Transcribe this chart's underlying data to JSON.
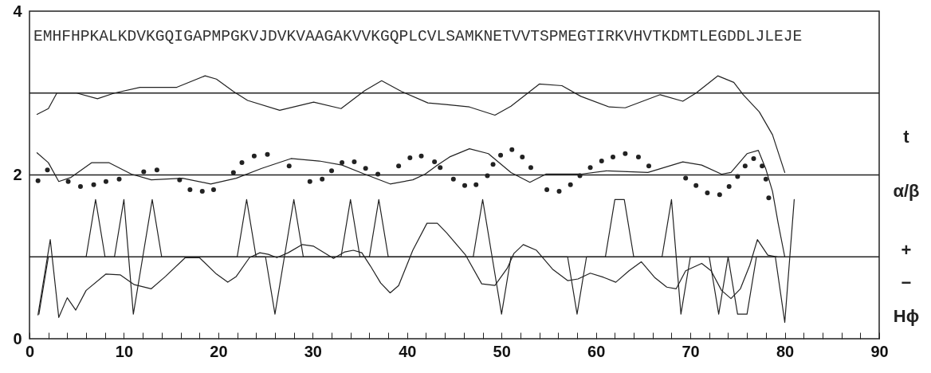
{
  "chart_data": {
    "type": "line",
    "annotations": [
      "EMHFHPKALKDVKGQIGAPMPGKVJDVKVAAGAKVVKGQPLCVLSAMKNETVVTSPMEGTIRKVHVTKDMTLEGDDLJLEJE",
      "t",
      "α/β",
      "+",
      "−",
      "Hϕ"
    ],
    "xlim": [
      0,
      90
    ],
    "ylim": [
      0,
      4
    ],
    "xticks": [
      0,
      {
        "value": 2,
        "label": null
      },
      {
        "value": 4,
        "label": null
      },
      {
        "value": 6,
        "label": null
      },
      {
        "value": 8,
        "label": null
      },
      10,
      {
        "value": 12,
        "label": null
      },
      {
        "value": 14,
        "label": null
      },
      {
        "value": 16,
        "label": null
      },
      {
        "value": 18,
        "label": null
      },
      20,
      {
        "value": 22,
        "label": null
      },
      {
        "value": 24,
        "label": null
      },
      {
        "value": 26,
        "label": null
      },
      {
        "value": 28,
        "label": null
      },
      30,
      {
        "value": 32,
        "label": null
      },
      {
        "value": 34,
        "label": null
      },
      {
        "value": 36,
        "label": null
      },
      {
        "value": 38,
        "label": null
      },
      40,
      {
        "value": 42,
        "label": null
      },
      {
        "value": 44,
        "label": null
      },
      {
        "value": 46,
        "label": null
      },
      {
        "value": 48,
        "label": null
      },
      50,
      {
        "value": 52,
        "label": null
      },
      {
        "value": 54,
        "label": null
      },
      {
        "value": 56,
        "label": null
      },
      {
        "value": 58,
        "label": null
      },
      60,
      {
        "value": 62,
        "label": null
      },
      {
        "value": 64,
        "label": null
      },
      {
        "value": 66,
        "label": null
      },
      {
        "value": 68,
        "label": null
      },
      70,
      {
        "value": 72,
        "label": null
      },
      {
        "value": 74,
        "label": null
      },
      {
        "value": 76,
        "label": null
      },
      {
        "value": 78,
        "label": null
      },
      80,
      {
        "value": 82,
        "label": null
      },
      {
        "value": 84,
        "label": null
      },
      {
        "value": 86,
        "label": null
      },
      {
        "value": 88,
        "label": null
      },
      90
    ],
    "yticks": [
      0,
      2,
      4
    ],
    "ref_lines": [
      {
        "axis": "y",
        "value": 3,
        "color": "#222222"
      },
      {
        "axis": "y",
        "value": 2,
        "color": "#222222"
      },
      {
        "axis": "y",
        "value": 1,
        "color": "#222222"
      }
    ],
    "series": [
      {
        "color": "#222222",
        "x": [
          0.8,
          2.0,
          2.9,
          5.0,
          7.2,
          9.0,
          11.7,
          15.6,
          18.6,
          19.8,
          21.6,
          23.1,
          26.5,
          30.1,
          33.0,
          35.5,
          37.3,
          39.4,
          42.2,
          44.1,
          46.6,
          49.3,
          51.0,
          54.0,
          56.4,
          58.4,
          61.4,
          63.1,
          66.8,
          69.2,
          70.6,
          72.9,
          74.6,
          75.6,
          77.3,
          78.7,
          80.0
        ],
        "values": [
          2.74,
          2.81,
          3.0,
          3.0,
          2.93,
          3.0,
          3.07,
          3.07,
          3.21,
          3.17,
          3.02,
          2.91,
          2.79,
          2.89,
          2.81,
          3.03,
          3.15,
          3.02,
          2.88,
          2.86,
          2.83,
          2.73,
          2.84,
          3.11,
          3.09,
          2.96,
          2.83,
          2.82,
          2.98,
          2.9,
          3.0,
          3.21,
          3.13,
          2.98,
          2.77,
          2.49,
          2.03
        ]
      },
      {
        "color": "#222222",
        "x": [
          0.8,
          2.0,
          3.1,
          4.4,
          6.6,
          8.4,
          10.8,
          12.9,
          16.2,
          19.2,
          21.9,
          24.6,
          27.7,
          30.7,
          33.1,
          35.5,
          38.2,
          40.6,
          41.9,
          43.2,
          44.5,
          46.6,
          48.6,
          51.0,
          53.0,
          54.7,
          58.4,
          61.1,
          65.5,
          69.2,
          71.2,
          73.3,
          74.3,
          76.0,
          77.2,
          78.0,
          78.7,
          79.3,
          80.0
        ],
        "values": [
          2.27,
          2.15,
          1.92,
          1.97,
          2.15,
          2.15,
          2.01,
          1.94,
          1.96,
          1.89,
          1.96,
          2.08,
          2.2,
          2.17,
          2.12,
          2.01,
          1.89,
          1.94,
          2.01,
          2.12,
          2.22,
          2.32,
          2.26,
          2.03,
          1.91,
          2.01,
          2.01,
          2.05,
          2.03,
          2.16,
          2.12,
          2.01,
          2.03,
          2.26,
          2.3,
          2.07,
          1.8,
          1.41,
          1.0
        ]
      },
      {
        "type": "scatter",
        "marker": "circle",
        "color": "#222222",
        "x": [
          0.9,
          1.9,
          4.1,
          5.4,
          6.8,
          8.1,
          9.5,
          12.1,
          13.5,
          15.9,
          17.0,
          18.3,
          19.5,
          21.6,
          22.5,
          23.8,
          25.2,
          27.5,
          29.7,
          31.0,
          32.0,
          33.1,
          34.4,
          35.6,
          36.9,
          39.1,
          40.3,
          41.5,
          42.9,
          43.5,
          44.9,
          46.1,
          47.3,
          48.5,
          49.1,
          49.9,
          51.1,
          52.2,
          53.1,
          54.8,
          56.1,
          57.3,
          58.3,
          59.4,
          60.6,
          61.8,
          63.1,
          64.5,
          65.6,
          69.5,
          70.6,
          71.8,
          73.1,
          74.1,
          75.0,
          75.8,
          76.7,
          77.6,
          78.0,
          78.3
        ],
        "values": [
          1.93,
          2.06,
          1.92,
          1.86,
          1.88,
          1.92,
          1.95,
          2.04,
          2.06,
          1.94,
          1.82,
          1.8,
          1.82,
          2.03,
          2.15,
          2.23,
          2.25,
          2.11,
          1.92,
          1.95,
          2.05,
          2.15,
          2.16,
          2.08,
          2.01,
          2.11,
          2.21,
          2.23,
          2.16,
          2.09,
          1.95,
          1.87,
          1.88,
          1.99,
          2.13,
          2.24,
          2.31,
          2.22,
          2.09,
          1.82,
          1.8,
          1.88,
          1.99,
          2.09,
          2.17,
          2.22,
          2.26,
          2.22,
          2.11,
          1.96,
          1.87,
          1.78,
          1.76,
          1.86,
          1.98,
          2.11,
          2.2,
          2.11,
          1.95,
          1.72
        ]
      },
      {
        "color": "#222222",
        "x": [
          1,
          2,
          6,
          7,
          8,
          9,
          10,
          11,
          12,
          13,
          14,
          22,
          23,
          24,
          25,
          26,
          27,
          28,
          29,
          33,
          34,
          35,
          36,
          37,
          38,
          47,
          48,
          49,
          50,
          51,
          57,
          58,
          59,
          61,
          62,
          63,
          64,
          67,
          68,
          69,
          70,
          72,
          73,
          74,
          75,
          76,
          77,
          79,
          80,
          81
        ],
        "values": [
          0.3,
          1,
          1,
          1.7,
          1,
          1,
          1.7,
          0.3,
          1,
          1.7,
          1,
          1,
          1.7,
          1,
          1,
          0.3,
          1,
          1.7,
          1,
          1,
          1.7,
          1,
          1,
          1.7,
          1,
          1,
          1.7,
          1,
          0.3,
          1,
          1,
          0.3,
          1,
          1,
          1.7,
          1.7,
          1,
          1,
          1.7,
          0.3,
          1,
          1,
          0.3,
          1,
          0.3,
          0.3,
          1,
          1,
          0.2,
          1.7
        ]
      },
      {
        "color": "#222222",
        "x": [
          0.9,
          2.2,
          3.1,
          4.0,
          4.9,
          6.0,
          8.1,
          9.6,
          11.1,
          12.9,
          14.4,
          16.5,
          18.0,
          19.8,
          21.0,
          21.9,
          23.3,
          24.4,
          25.3,
          26.2,
          27.4,
          28.9,
          30.1,
          32.2,
          33.4,
          34.3,
          35.2,
          36.1,
          37.2,
          38.2,
          39.1,
          40.6,
          42.1,
          43.2,
          44.2,
          46.2,
          47.9,
          49.3,
          50.6,
          51.3,
          52.3,
          53.7,
          55.4,
          57.0,
          58.1,
          59.4,
          60.8,
          62.1,
          63.5,
          64.8,
          66.2,
          67.5,
          68.5,
          69.5,
          71.2,
          72.2,
          73.3,
          74.3,
          75.3,
          76.3,
          77.1,
          78.2,
          79.2
        ],
        "values": [
          0.29,
          1.21,
          0.26,
          0.5,
          0.35,
          0.59,
          0.79,
          0.78,
          0.66,
          0.61,
          0.76,
          0.99,
          0.99,
          0.79,
          0.69,
          0.76,
          0.99,
          1.05,
          1.03,
          0.99,
          1.05,
          1.15,
          1.13,
          0.98,
          1.06,
          1.08,
          1.05,
          0.89,
          0.68,
          0.56,
          0.65,
          1.08,
          1.41,
          1.41,
          1.29,
          1.02,
          0.67,
          0.65,
          0.86,
          1.04,
          1.15,
          1.08,
          0.85,
          0.71,
          0.73,
          0.8,
          0.75,
          0.69,
          0.83,
          0.94,
          0.75,
          0.63,
          0.61,
          0.83,
          0.92,
          0.83,
          0.59,
          0.49,
          0.61,
          0.9,
          1.21,
          1.02,
          1.0
        ]
      }
    ]
  }
}
